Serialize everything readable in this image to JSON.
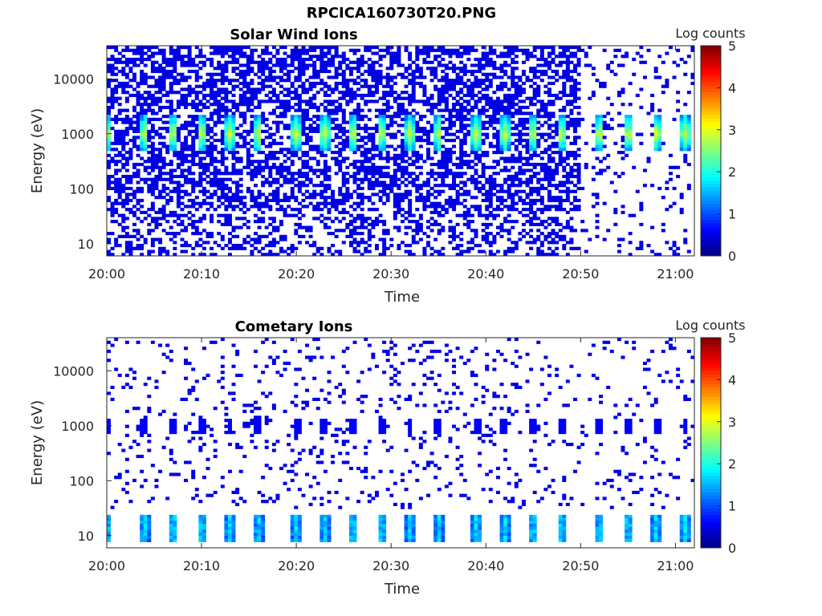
{
  "figure_title": "RPCICA160730T20.PNG",
  "colors": {
    "empty": "#ffffff",
    "axis": "#262626",
    "colormap": "jet"
  },
  "chart_data": [
    {
      "type": "heatmap",
      "title": "Solar Wind Ions",
      "xlabel": "Time",
      "ylabel": "Energy (eV)",
      "x_ticks": [
        "20:00",
        "20:10",
        "20:20",
        "20:30",
        "20:40",
        "20:50",
        "21:00"
      ],
      "x_range": [
        "20:00",
        "21:02"
      ],
      "y_scale": "log",
      "y_ticks": [
        "10",
        "100",
        "1000",
        "10000"
      ],
      "y_range": [
        6,
        40000
      ],
      "colorbar": {
        "label": "Log counts",
        "ticks": [
          "0",
          "1",
          "2",
          "3",
          "4",
          "5"
        ],
        "range": [
          0,
          5
        ]
      },
      "peak_energy_eV": 1000,
      "peak_log_counts": 3,
      "sweep_times": [
        "20:00",
        "20:04",
        "20:07",
        "20:10",
        "20:13",
        "20:16",
        "20:20",
        "20:23",
        "20:26",
        "20:29",
        "20:32",
        "20:35",
        "20:39",
        "20:42",
        "20:45",
        "20:48",
        "20:52",
        "20:55",
        "20:58",
        "21:01"
      ]
    },
    {
      "type": "heatmap",
      "title": "Cometary Ions",
      "xlabel": "Time",
      "ylabel": "Energy (eV)",
      "x_ticks": [
        "20:00",
        "20:10",
        "20:20",
        "20:30",
        "20:40",
        "20:50",
        "21:00"
      ],
      "x_range": [
        "20:00",
        "21:02"
      ],
      "y_scale": "log",
      "y_ticks": [
        "10",
        "100",
        "1000",
        "10000"
      ],
      "y_range": [
        6,
        40000
      ],
      "colorbar": {
        "label": "Log counts",
        "ticks": [
          "0",
          "1",
          "2",
          "3",
          "4",
          "5"
        ],
        "range": [
          0,
          5
        ]
      },
      "low_band_energy_eV": [
        8,
        25
      ],
      "peak_log_counts": 1.7,
      "sweep_times": [
        "20:00",
        "20:04",
        "20:07",
        "20:10",
        "20:13",
        "20:16",
        "20:20",
        "20:23",
        "20:26",
        "20:29",
        "20:32",
        "20:35",
        "20:39",
        "20:42",
        "20:45",
        "20:48",
        "20:52",
        "20:55",
        "20:58",
        "21:01"
      ]
    }
  ]
}
